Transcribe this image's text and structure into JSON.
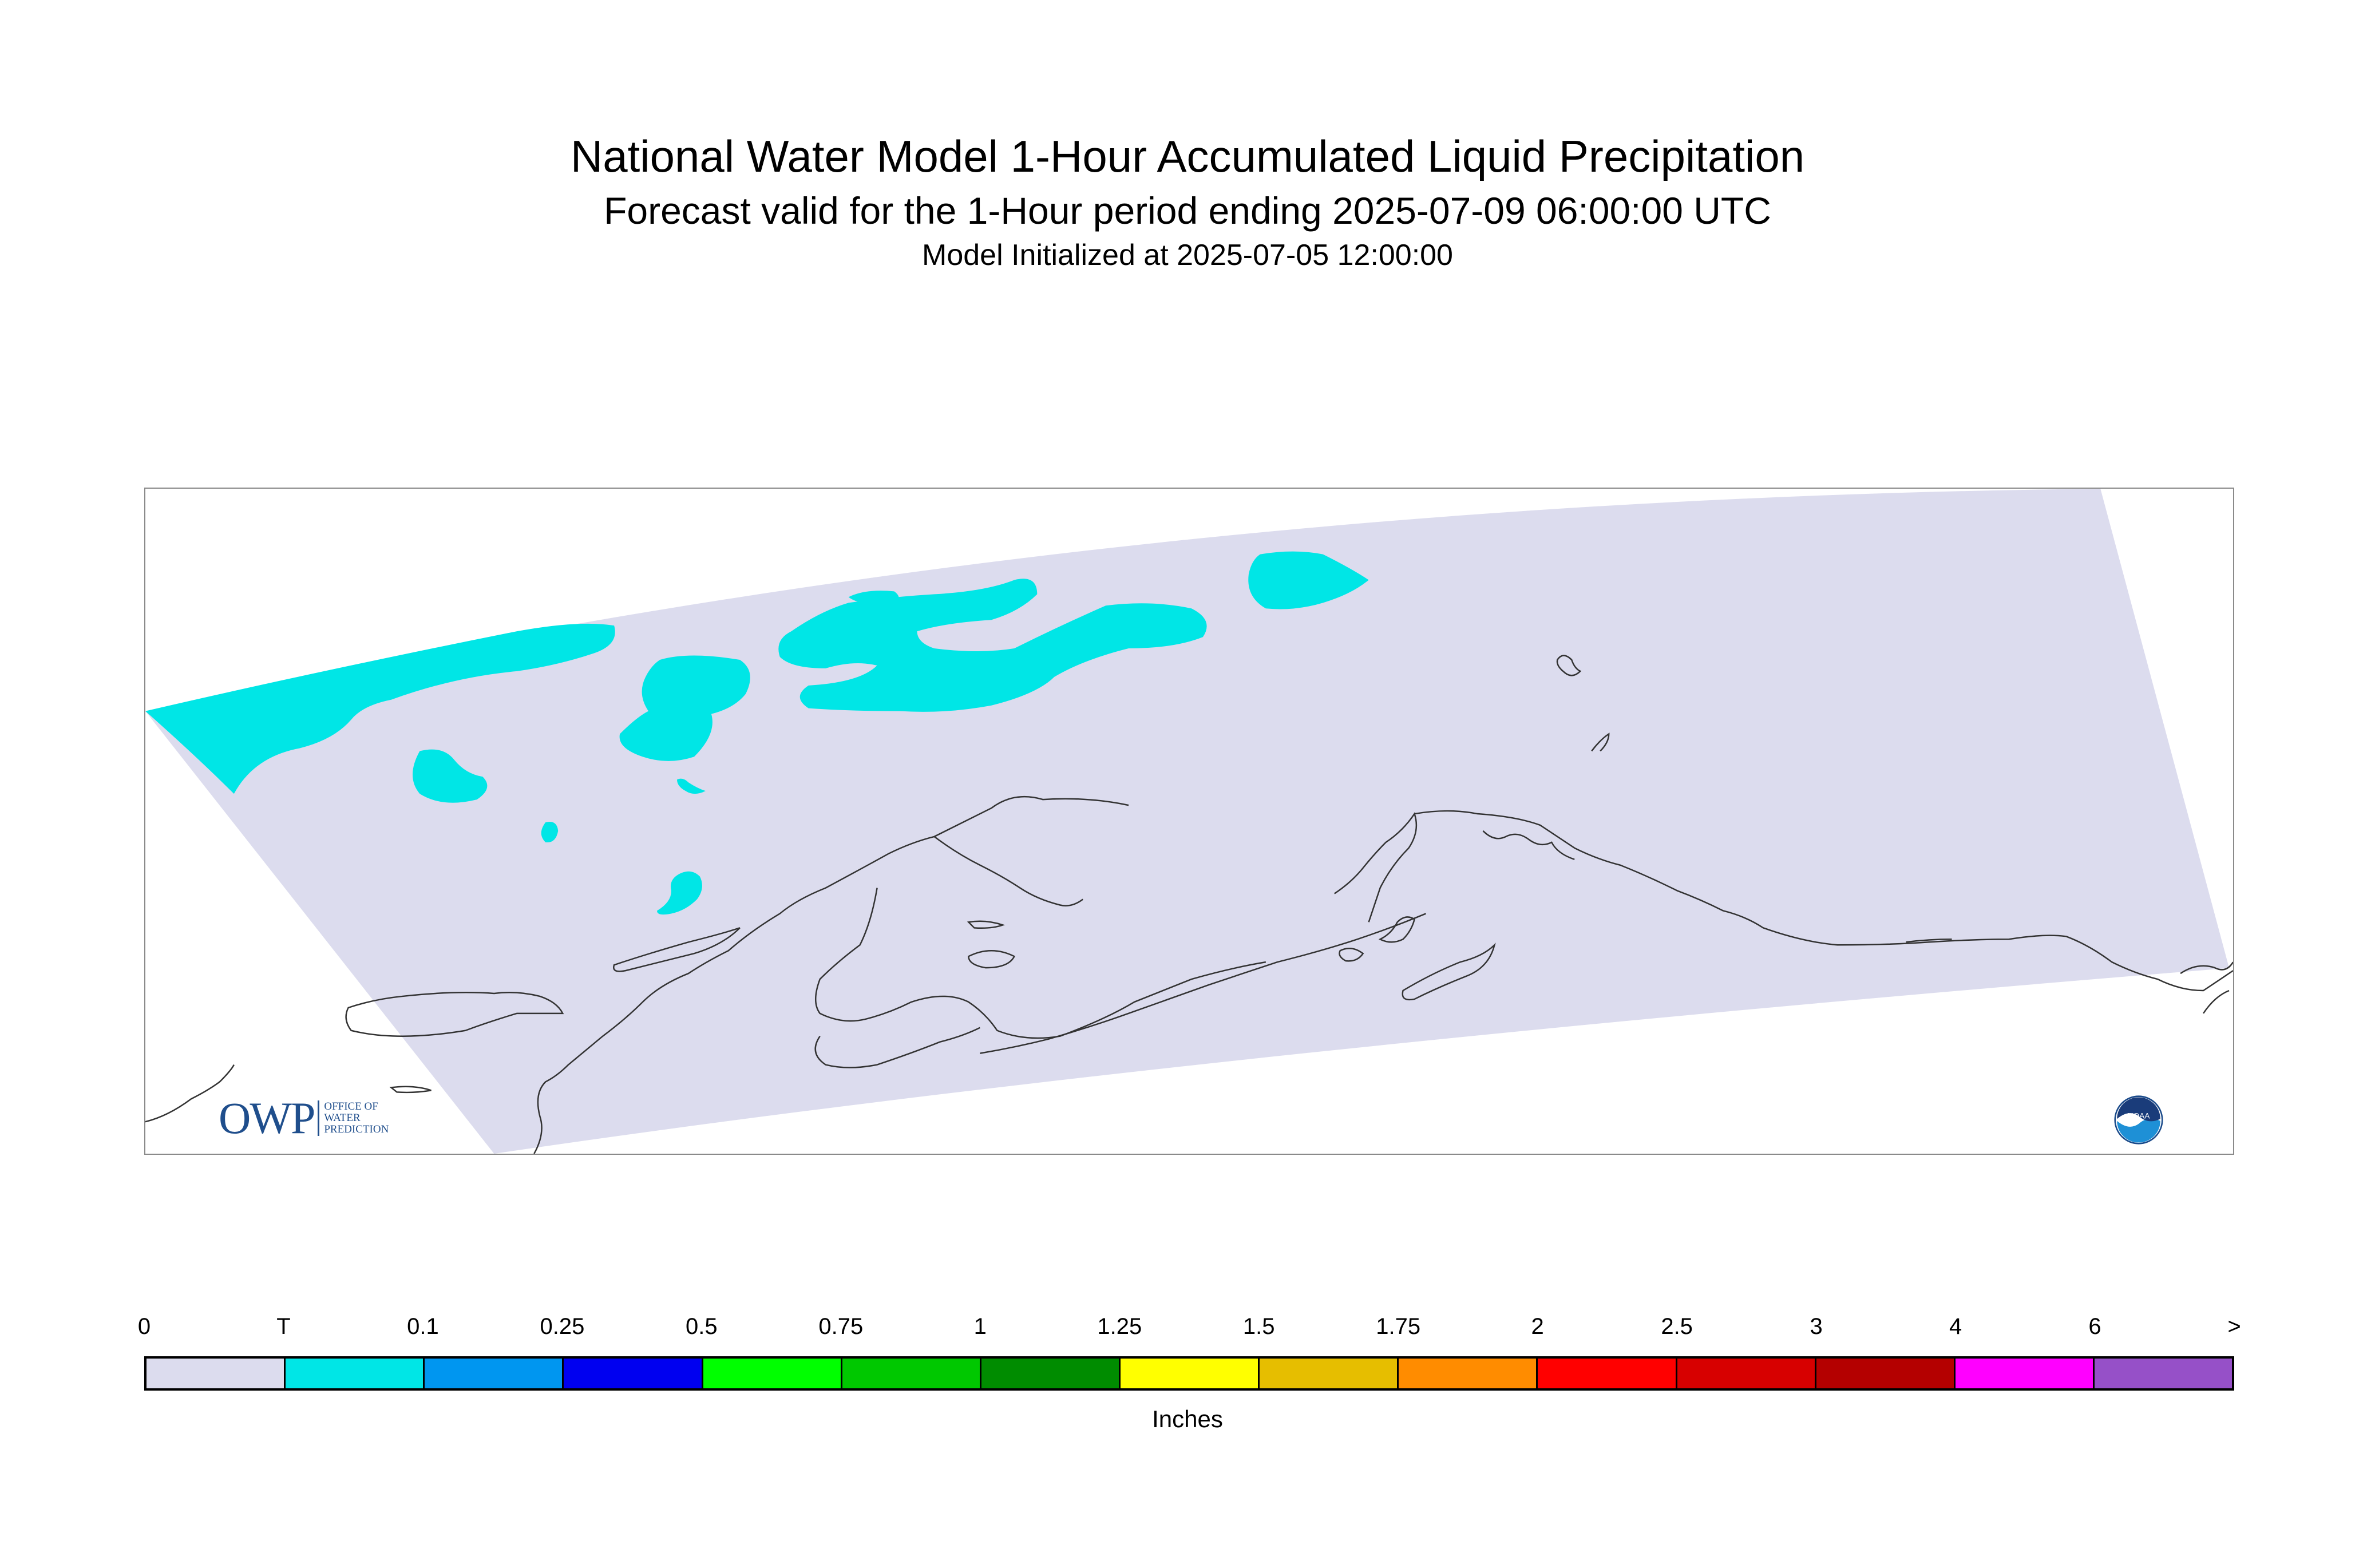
{
  "header": {
    "title": "National Water Model 1-Hour Accumulated Liquid Precipitation",
    "subtitle": "Forecast valid for the 1-Hour period ending 2025-07-09 06:00:00 UTC",
    "init": "Model Initialized at 2025-07-05 12:00:00"
  },
  "map": {
    "domain_fill": "#dcdcee",
    "precip_fill": "#00e6e6",
    "precip_category": "T",
    "coastline_color": "#333333"
  },
  "logos": {
    "owp": {
      "big": "OWP",
      "line1": "OFFICE OF",
      "line2": "WATER",
      "line3": "PREDICTION"
    },
    "noaa": {
      "text": "NOAA"
    }
  },
  "legend": {
    "labels": [
      "0",
      "T",
      "0.1",
      "0.25",
      "0.5",
      "0.75",
      "1",
      "1.25",
      "1.5",
      "1.75",
      "2",
      "2.5",
      "3",
      "4",
      "6",
      ">"
    ],
    "colors": [
      "#dcdcee",
      "#00e6e6",
      "#0096f0",
      "#0000f0",
      "#00ff00",
      "#00c800",
      "#008c00",
      "#ffff00",
      "#e6be00",
      "#ff8c00",
      "#ff0000",
      "#d70000",
      "#b40000",
      "#ff00ff",
      "#9650c8"
    ],
    "units": "Inches"
  }
}
